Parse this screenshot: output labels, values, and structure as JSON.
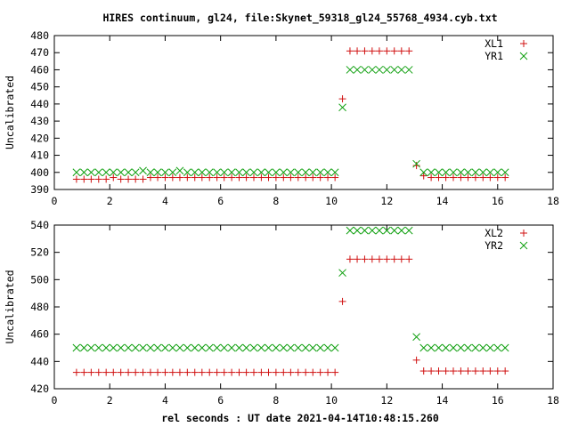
{
  "title": "HIRES continuum, gl24, file:Skynet_59318_gl24_55768_4934.cyb.txt",
  "xlabel": "rel seconds : UT date 2021-04-14T10:48:15.260",
  "chart_data": [
    {
      "type": "scatter",
      "ylabel": "Uncalibrated",
      "xlim": [
        0,
        18
      ],
      "ylim": [
        390,
        480
      ],
      "xticks": [
        0,
        2,
        4,
        6,
        8,
        10,
        12,
        14,
        16,
        18
      ],
      "yticks": [
        390,
        400,
        410,
        420,
        430,
        440,
        450,
        460,
        470,
        480
      ],
      "legend_position": "top-right",
      "grid": false,
      "series": [
        {
          "name": "XL1",
          "marker": "plus",
          "color": "#d01010",
          "x": [
            0.8,
            1.07,
            1.33,
            1.6,
            1.87,
            2.13,
            2.4,
            2.67,
            2.93,
            3.2,
            3.47,
            3.73,
            4.0,
            4.27,
            4.53,
            4.8,
            5.07,
            5.33,
            5.6,
            5.87,
            6.13,
            6.4,
            6.67,
            6.93,
            7.2,
            7.47,
            7.73,
            8.0,
            8.27,
            8.53,
            8.8,
            9.07,
            9.33,
            9.6,
            9.87,
            10.13,
            10.4,
            10.67,
            10.93,
            11.2,
            11.47,
            11.73,
            12.0,
            12.27,
            12.53,
            12.8,
            13.07,
            13.33,
            13.6,
            13.87,
            14.13,
            14.4,
            14.67,
            14.93,
            15.2,
            15.47,
            15.73,
            16.0,
            16.27
          ],
          "y": [
            396,
            396,
            396,
            396,
            396,
            397,
            396,
            396,
            396,
            396,
            397,
            397,
            397,
            397,
            397,
            397,
            397,
            397,
            397,
            397,
            397,
            397,
            397,
            397,
            397,
            397,
            397,
            397,
            397,
            397,
            397,
            397,
            397,
            397,
            397,
            397,
            443,
            471,
            471,
            471,
            471,
            471,
            471,
            471,
            471,
            471,
            404,
            398,
            397,
            397,
            397,
            397,
            397,
            397,
            397,
            397,
            397,
            397,
            397
          ]
        },
        {
          "name": "YR1",
          "marker": "cross",
          "color": "#10a010",
          "x": [
            0.8,
            1.07,
            1.33,
            1.6,
            1.87,
            2.13,
            2.4,
            2.67,
            2.93,
            3.2,
            3.47,
            3.73,
            4.0,
            4.27,
            4.53,
            4.8,
            5.07,
            5.33,
            5.6,
            5.87,
            6.13,
            6.4,
            6.67,
            6.93,
            7.2,
            7.47,
            7.73,
            8.0,
            8.27,
            8.53,
            8.8,
            9.07,
            9.33,
            9.6,
            9.87,
            10.13,
            10.4,
            10.67,
            10.93,
            11.2,
            11.47,
            11.73,
            12.0,
            12.27,
            12.53,
            12.8,
            13.07,
            13.33,
            13.6,
            13.87,
            14.13,
            14.4,
            14.67,
            14.93,
            15.2,
            15.47,
            15.73,
            16.0,
            16.27
          ],
          "y": [
            400,
            400,
            400,
            400,
            400,
            400,
            400,
            400,
            400,
            401,
            400,
            400,
            400,
            400,
            401,
            400,
            400,
            400,
            400,
            400,
            400,
            400,
            400,
            400,
            400,
            400,
            400,
            400,
            400,
            400,
            400,
            400,
            400,
            400,
            400,
            400,
            438,
            460,
            460,
            460,
            460,
            460,
            460,
            460,
            460,
            460,
            405,
            400,
            400,
            400,
            400,
            400,
            400,
            400,
            400,
            400,
            400,
            400,
            400
          ]
        }
      ]
    },
    {
      "type": "scatter",
      "ylabel": "Uncalibrated",
      "xlim": [
        0,
        18
      ],
      "ylim": [
        420,
        540
      ],
      "xticks": [
        0,
        2,
        4,
        6,
        8,
        10,
        12,
        14,
        16,
        18
      ],
      "yticks": [
        420,
        440,
        460,
        480,
        500,
        520,
        540
      ],
      "legend_position": "top-right",
      "grid": false,
      "series": [
        {
          "name": "XL2",
          "marker": "plus",
          "color": "#d01010",
          "x": [
            0.8,
            1.07,
            1.33,
            1.6,
            1.87,
            2.13,
            2.4,
            2.67,
            2.93,
            3.2,
            3.47,
            3.73,
            4.0,
            4.27,
            4.53,
            4.8,
            5.07,
            5.33,
            5.6,
            5.87,
            6.13,
            6.4,
            6.67,
            6.93,
            7.2,
            7.47,
            7.73,
            8.0,
            8.27,
            8.53,
            8.8,
            9.07,
            9.33,
            9.6,
            9.87,
            10.13,
            10.4,
            10.67,
            10.93,
            11.2,
            11.47,
            11.73,
            12.0,
            12.27,
            12.53,
            12.8,
            13.07,
            13.33,
            13.6,
            13.87,
            14.13,
            14.4,
            14.67,
            14.93,
            15.2,
            15.47,
            15.73,
            16.0,
            16.27
          ],
          "y": [
            432,
            432,
            432,
            432,
            432,
            432,
            432,
            432,
            432,
            432,
            432,
            432,
            432,
            432,
            432,
            432,
            432,
            432,
            432,
            432,
            432,
            432,
            432,
            432,
            432,
            432,
            432,
            432,
            432,
            432,
            432,
            432,
            432,
            432,
            432,
            432,
            484,
            515,
            515,
            515,
            515,
            515,
            515,
            515,
            515,
            515,
            441,
            433,
            433,
            433,
            433,
            433,
            433,
            433,
            433,
            433,
            433,
            433,
            433
          ]
        },
        {
          "name": "YR2",
          "marker": "cross",
          "color": "#10a010",
          "x": [
            0.8,
            1.07,
            1.33,
            1.6,
            1.87,
            2.13,
            2.4,
            2.67,
            2.93,
            3.2,
            3.47,
            3.73,
            4.0,
            4.27,
            4.53,
            4.8,
            5.07,
            5.33,
            5.6,
            5.87,
            6.13,
            6.4,
            6.67,
            6.93,
            7.2,
            7.47,
            7.73,
            8.0,
            8.27,
            8.53,
            8.8,
            9.07,
            9.33,
            9.6,
            9.87,
            10.13,
            10.4,
            10.67,
            10.93,
            11.2,
            11.47,
            11.73,
            12.0,
            12.27,
            12.53,
            12.8,
            13.07,
            13.33,
            13.6,
            13.87,
            14.13,
            14.4,
            14.67,
            14.93,
            15.2,
            15.47,
            15.73,
            16.0,
            16.27
          ],
          "y": [
            450,
            450,
            450,
            450,
            450,
            450,
            450,
            450,
            450,
            450,
            450,
            450,
            450,
            450,
            450,
            450,
            450,
            450,
            450,
            450,
            450,
            450,
            450,
            450,
            450,
            450,
            450,
            450,
            450,
            450,
            450,
            450,
            450,
            450,
            450,
            450,
            505,
            536,
            536,
            536,
            536,
            536,
            536,
            536,
            536,
            536,
            458,
            450,
            450,
            450,
            450,
            450,
            450,
            450,
            450,
            450,
            450,
            450,
            450
          ]
        }
      ]
    }
  ]
}
